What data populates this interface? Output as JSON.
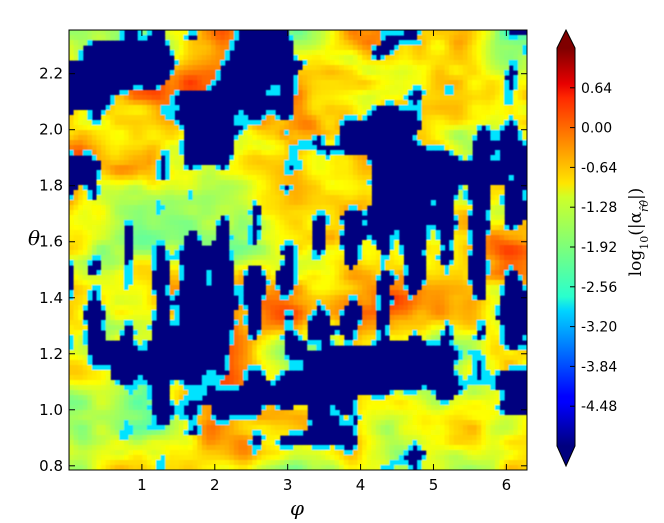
{
  "chart_data": {
    "type": "heatmap",
    "title": "",
    "xlabel": "φ",
    "ylabel": "θ",
    "xlim": [
      0.0,
      6.283
    ],
    "ylim": [
      0.785,
      2.356
    ],
    "x_ticks": [
      1,
      2,
      3,
      4,
      5,
      6
    ],
    "y_ticks": [
      0.8,
      1.0,
      1.2,
      1.4,
      1.6,
      1.8,
      2.0,
      2.2
    ],
    "colorbar": {
      "label": "log10(|α_r̂θ̂|)",
      "label_main": "log",
      "label_sub": "10",
      "label_rest": "(|α",
      "label_sub2": "r̂θ̂",
      "label_end": "|)",
      "colormap": "jet",
      "range": [
        -5.12,
        1.28
      ],
      "ticks": [
        0.64,
        0.0,
        -0.64,
        -1.28,
        -1.92,
        -2.56,
        -3.2,
        -3.84,
        -4.48
      ],
      "tick_labels": [
        "0.64",
        "0.00",
        "-0.64",
        "-1.28",
        "-1.92",
        "-2.56",
        "-3.20",
        "-3.84",
        "-4.48"
      ],
      "extend": "both"
    },
    "field_description_values": {
      "background_value": -5.12,
      "typical_range": [
        -3.2,
        0.64
      ]
    }
  }
}
